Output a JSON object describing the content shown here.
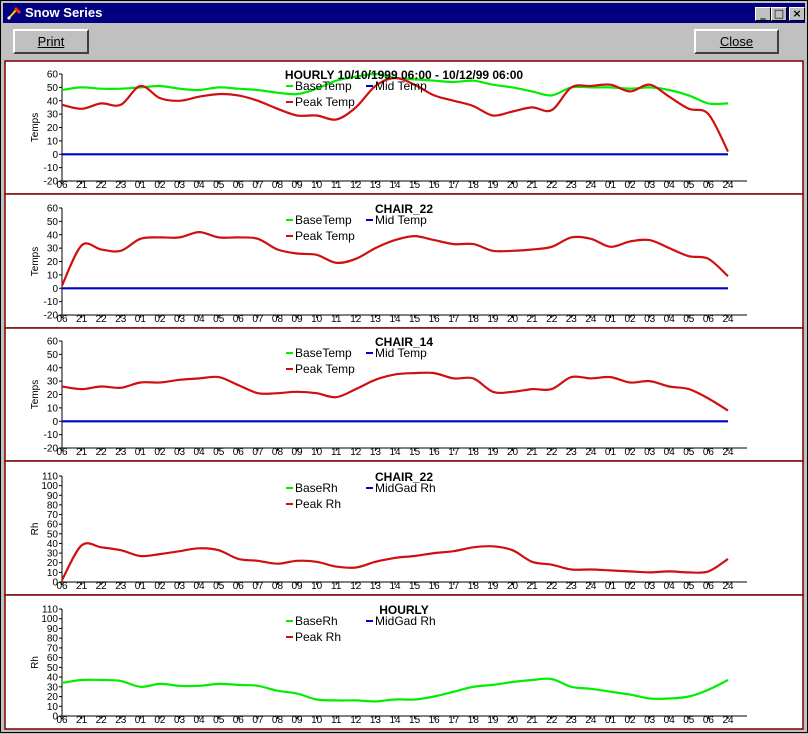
{
  "window": {
    "title": "Snow Series"
  },
  "toolbar": {
    "print_label": "Print",
    "close_label": "Close"
  },
  "titlebar_buttons": {
    "minimize_icon": "minimize-icon",
    "maximize_icon": "maximize-icon",
    "close_icon": "close-icon"
  },
  "colors": {
    "base": "#00ee00",
    "mid": "#0000cc",
    "peak": "#d01010",
    "panel_border": "#800000",
    "window_title_bg": "#000080"
  },
  "chart_data": [
    {
      "type": "line",
      "title": "HOURLY   10/10/1999 06:00 - 10/12/99 06:00",
      "ylabel": "Temps",
      "ylim": [
        -20,
        60
      ],
      "yticks": [
        60,
        50,
        40,
        30,
        20,
        10,
        0,
        -10,
        -20
      ],
      "xticks": [
        "06",
        "21",
        "22",
        "23",
        "01",
        "02",
        "03",
        "04",
        "05",
        "06",
        "07",
        "08",
        "09",
        "10",
        "11",
        "12",
        "13",
        "14",
        "15",
        "16",
        "17",
        "18",
        "19",
        "20",
        "21",
        "22",
        "23",
        "24",
        "01",
        "02",
        "03",
        "04",
        "05",
        "06",
        "24"
      ],
      "legend": [
        "BaseTemp",
        "Mid Temp",
        "Peak Temp"
      ],
      "series": [
        {
          "name": "BaseTemp",
          "color": "#00ee00",
          "values": [
            48,
            50,
            49,
            49,
            50,
            51,
            49,
            48,
            50,
            49,
            48,
            46,
            45,
            49,
            55,
            58,
            60,
            57,
            56,
            55,
            54,
            55,
            52,
            50,
            47,
            44,
            50,
            50,
            50,
            49,
            50,
            48,
            44,
            38,
            38
          ]
        },
        {
          "name": "Mid Temp",
          "color": "#0000cc",
          "values": [
            0,
            0,
            0,
            0,
            0,
            0,
            0,
            0,
            0,
            0,
            0,
            0,
            0,
            0,
            0,
            0,
            0,
            0,
            0,
            0,
            0,
            0,
            0,
            0,
            0,
            0,
            0,
            0,
            0,
            0,
            0,
            0,
            0,
            0,
            0
          ]
        },
        {
          "name": "Peak Temp",
          "color": "#d01010",
          "values": [
            37,
            34,
            38,
            37,
            51,
            42,
            40,
            43,
            45,
            44,
            40,
            34,
            29,
            29,
            26,
            35,
            51,
            57,
            52,
            44,
            40,
            36,
            29,
            32,
            35,
            33,
            50,
            51,
            52,
            47,
            52,
            43,
            34,
            30,
            2
          ]
        }
      ]
    },
    {
      "type": "line",
      "title": "CHAIR_22",
      "ylabel": "Temps",
      "ylim": [
        -20,
        60
      ],
      "yticks": [
        60,
        50,
        40,
        30,
        20,
        10,
        0,
        -10,
        -20
      ],
      "xticks": [
        "06",
        "21",
        "22",
        "23",
        "01",
        "02",
        "03",
        "04",
        "05",
        "06",
        "07",
        "08",
        "09",
        "10",
        "11",
        "12",
        "13",
        "14",
        "15",
        "16",
        "17",
        "18",
        "19",
        "20",
        "21",
        "22",
        "23",
        "24",
        "01",
        "02",
        "03",
        "04",
        "05",
        "06",
        "24"
      ],
      "legend": [
        "BaseTemp",
        "Mid Temp",
        "Peak Temp"
      ],
      "series": [
        {
          "name": "Mid Temp",
          "color": "#0000cc",
          "values": [
            0,
            0,
            0,
            0,
            0,
            0,
            0,
            0,
            0,
            0,
            0,
            0,
            0,
            0,
            0,
            0,
            0,
            0,
            0,
            0,
            0,
            0,
            0,
            0,
            0,
            0,
            0,
            0,
            0,
            0,
            0,
            0,
            0,
            0,
            0
          ]
        },
        {
          "name": "Peak Temp",
          "color": "#d01010",
          "values": [
            2,
            32,
            29,
            28,
            37,
            38,
            38,
            42,
            38,
            38,
            37,
            29,
            26,
            25,
            19,
            22,
            30,
            36,
            39,
            36,
            33,
            33,
            28,
            28,
            29,
            31,
            38,
            37,
            31,
            35,
            36,
            30,
            24,
            22,
            9
          ]
        }
      ]
    },
    {
      "type": "line",
      "title": "CHAIR_14",
      "ylabel": "Temps",
      "ylim": [
        -20,
        60
      ],
      "yticks": [
        60,
        50,
        40,
        30,
        20,
        10,
        0,
        -10,
        -20
      ],
      "xticks": [
        "06",
        "21",
        "22",
        "23",
        "01",
        "02",
        "03",
        "04",
        "05",
        "06",
        "07",
        "08",
        "09",
        "10",
        "11",
        "12",
        "13",
        "14",
        "15",
        "16",
        "17",
        "18",
        "19",
        "20",
        "21",
        "22",
        "23",
        "24",
        "01",
        "02",
        "03",
        "04",
        "05",
        "06",
        "24"
      ],
      "legend": [
        "BaseTemp",
        "Mid Temp",
        "Peak Temp"
      ],
      "series": [
        {
          "name": "Mid Temp",
          "color": "#0000cc",
          "values": [
            0,
            0,
            0,
            0,
            0,
            0,
            0,
            0,
            0,
            0,
            0,
            0,
            0,
            0,
            0,
            0,
            0,
            0,
            0,
            0,
            0,
            0,
            0,
            0,
            0,
            0,
            0,
            0,
            0,
            0,
            0,
            0,
            0,
            0,
            0
          ]
        },
        {
          "name": "Peak Temp",
          "color": "#d01010",
          "values": [
            26,
            24,
            26,
            25,
            29,
            29,
            31,
            32,
            33,
            27,
            21,
            21,
            22,
            21,
            18,
            24,
            31,
            35,
            36,
            36,
            32,
            32,
            22,
            22,
            24,
            24,
            33,
            32,
            33,
            29,
            30,
            26,
            24,
            17,
            8
          ]
        }
      ]
    },
    {
      "type": "line",
      "title": "CHAIR_22",
      "ylabel": "Rh",
      "ylim": [
        0,
        110
      ],
      "yticks": [
        110,
        100,
        90,
        80,
        70,
        60,
        50,
        40,
        30,
        20,
        10,
        0
      ],
      "xticks": [
        "06",
        "21",
        "22",
        "23",
        "01",
        "02",
        "03",
        "04",
        "05",
        "06",
        "07",
        "08",
        "09",
        "10",
        "11",
        "12",
        "13",
        "14",
        "15",
        "16",
        "17",
        "18",
        "19",
        "20",
        "21",
        "22",
        "23",
        "24",
        "01",
        "02",
        "03",
        "04",
        "05",
        "06",
        "24"
      ],
      "legend": [
        "BaseRh",
        "MidGad Rh",
        "Peak Rh"
      ],
      "series": [
        {
          "name": "Peak Rh",
          "color": "#d01010",
          "values": [
            2,
            38,
            36,
            33,
            27,
            29,
            32,
            35,
            33,
            24,
            22,
            19,
            22,
            21,
            16,
            15,
            21,
            25,
            27,
            30,
            32,
            36,
            37,
            33,
            21,
            18,
            13,
            13,
            12,
            11,
            10,
            11,
            10,
            11,
            24
          ]
        }
      ]
    },
    {
      "type": "line",
      "title": "HOURLY",
      "ylabel": "Rh",
      "ylim": [
        0,
        110
      ],
      "yticks": [
        110,
        100,
        90,
        80,
        70,
        60,
        50,
        40,
        30,
        20,
        10,
        0
      ],
      "xticks": [
        "06",
        "21",
        "22",
        "23",
        "01",
        "02",
        "03",
        "04",
        "05",
        "06",
        "07",
        "08",
        "09",
        "10",
        "11",
        "12",
        "13",
        "14",
        "15",
        "16",
        "17",
        "18",
        "19",
        "20",
        "21",
        "22",
        "23",
        "24",
        "01",
        "02",
        "03",
        "04",
        "05",
        "06",
        "24"
      ],
      "legend": [
        "BaseRh",
        "MidGad Rh",
        "Peak Rh"
      ],
      "series": [
        {
          "name": "BaseRh",
          "color": "#00ee00",
          "values": [
            34,
            37,
            37,
            36,
            30,
            33,
            31,
            31,
            33,
            32,
            31,
            26,
            23,
            17,
            16,
            16,
            15,
            17,
            17,
            20,
            25,
            30,
            32,
            35,
            37,
            38,
            30,
            28,
            25,
            22,
            18,
            18,
            20,
            27,
            37
          ]
        }
      ]
    }
  ]
}
